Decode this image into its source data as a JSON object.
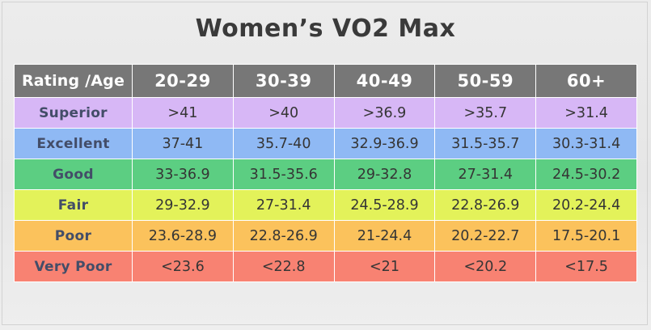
{
  "title": "Women’s VO2 Max",
  "header": {
    "rating_label": "Rating /Age",
    "age_groups": [
      "20-29",
      "30-39",
      "40-49",
      "50-59",
      "60+"
    ]
  },
  "rows": [
    {
      "label": "Superior",
      "values": [
        ">41",
        ">40",
        ">36.9",
        ">35.7",
        ">31.4"
      ],
      "color": "#d7b7f6"
    },
    {
      "label": "Excellent",
      "values": [
        "37-41",
        "35.7-40",
        "32.9-36.9",
        "31.5-35.7",
        "30.3-31.4"
      ],
      "color": "#8fb9f4"
    },
    {
      "label": "Good",
      "values": [
        "33-36.9",
        "31.5-35.6",
        "29-32.8",
        "27-31.4",
        "24.5-30.2"
      ],
      "color": "#5cce82"
    },
    {
      "label": "Fair",
      "values": [
        "29-32.9",
        "27-31.4",
        "24.5-28.9",
        "22.8-26.9",
        "20.2-24.4"
      ],
      "color": "#e3f25a"
    },
    {
      "label": "Poor",
      "values": [
        "23.6-28.9",
        "22.8-26.9",
        "21-24.4",
        "20.2-22.7",
        "17.5-20.1"
      ],
      "color": "#fbc25c"
    },
    {
      "label": "Very Poor",
      "values": [
        "<23.6",
        "<22.8",
        "<21",
        "<20.2",
        "<17.5"
      ],
      "color": "#f88272"
    }
  ],
  "colors": {
    "header_bg": "#777777",
    "header_text": "#ffffff",
    "title_text": "#3a3a3a",
    "label_text": "#434d68"
  }
}
